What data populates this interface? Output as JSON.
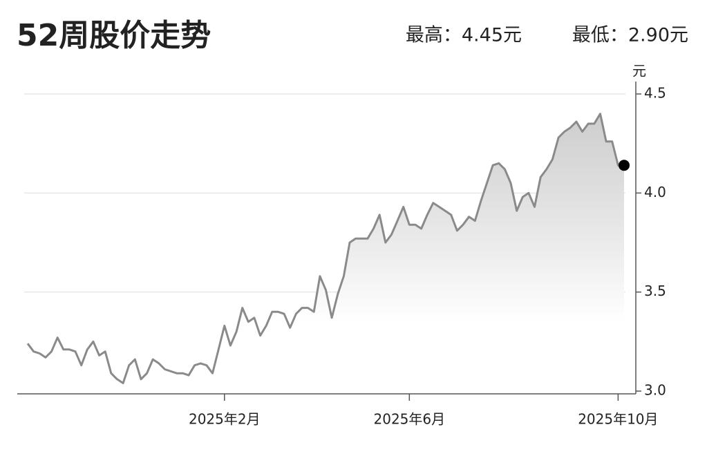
{
  "chart_data": {
    "type": "line",
    "title": "52周股价走势",
    "high_label": "最高：4.45元",
    "low_label": "最低：2.90元",
    "y_label": "元",
    "categories": [
      null,
      null,
      null,
      null,
      null,
      null,
      null,
      null,
      null,
      null,
      null,
      null,
      null,
      null,
      null,
      null,
      null,
      null,
      null,
      null,
      null,
      null,
      null,
      null,
      null,
      null,
      null,
      null,
      null,
      null,
      null,
      null,
      null,
      "2025年2月",
      null,
      null,
      null,
      null,
      null,
      null,
      null,
      null,
      null,
      null,
      null,
      null,
      null,
      null,
      null,
      null,
      null,
      null,
      null,
      null,
      null,
      null,
      null,
      null,
      null,
      null,
      null,
      null,
      null,
      null,
      "2025年6月",
      null,
      null,
      null,
      null,
      null,
      null,
      null,
      null,
      null,
      null,
      null,
      null,
      null,
      null,
      null,
      null,
      null,
      null,
      null,
      null,
      null,
      null,
      null,
      null,
      null,
      null,
      null,
      null,
      null,
      null,
      null,
      null,
      null,
      null,
      "2025年10月",
      null
    ],
    "series": [
      {
        "color": "#8a8a8a",
        "values": [
          3.24,
          3.2,
          3.19,
          3.17,
          3.2,
          3.27,
          3.21,
          3.21,
          3.2,
          3.13,
          3.21,
          3.25,
          3.18,
          3.2,
          3.09,
          3.06,
          3.04,
          3.13,
          3.16,
          3.06,
          3.09,
          3.16,
          3.14,
          3.11,
          3.1,
          3.09,
          3.09,
          3.08,
          3.13,
          3.14,
          3.13,
          3.09,
          3.21,
          3.33,
          3.23,
          3.3,
          3.42,
          3.35,
          3.37,
          3.28,
          3.33,
          3.4,
          3.4,
          3.39,
          3.32,
          3.39,
          3.42,
          3.42,
          3.4,
          3.58,
          3.51,
          3.37,
          3.49,
          3.58,
          3.75,
          3.77,
          3.77,
          3.77,
          3.82,
          3.89,
          3.75,
          3.79,
          3.86,
          3.93,
          3.84,
          3.84,
          3.82,
          3.89,
          3.95,
          3.93,
          3.91,
          3.89,
          3.81,
          3.84,
          3.88,
          3.86,
          3.96,
          4.05,
          4.14,
          4.15,
          4.12,
          4.05,
          3.91,
          3.98,
          4.0,
          3.93,
          4.08,
          4.12,
          4.17,
          4.28,
          4.31,
          4.33,
          4.36,
          4.31,
          4.35,
          4.35,
          4.4,
          4.26,
          4.26,
          4.14,
          4.14
        ]
      }
    ],
    "ylim": [
      3,
      4.5
    ],
    "yticks": [
      {
        "value": 3,
        "label": "3.0"
      },
      3.5,
      {
        "value": 4,
        "label": "4.0"
      },
      4.5
    ],
    "grid": true,
    "last_point_color": "#000000"
  }
}
